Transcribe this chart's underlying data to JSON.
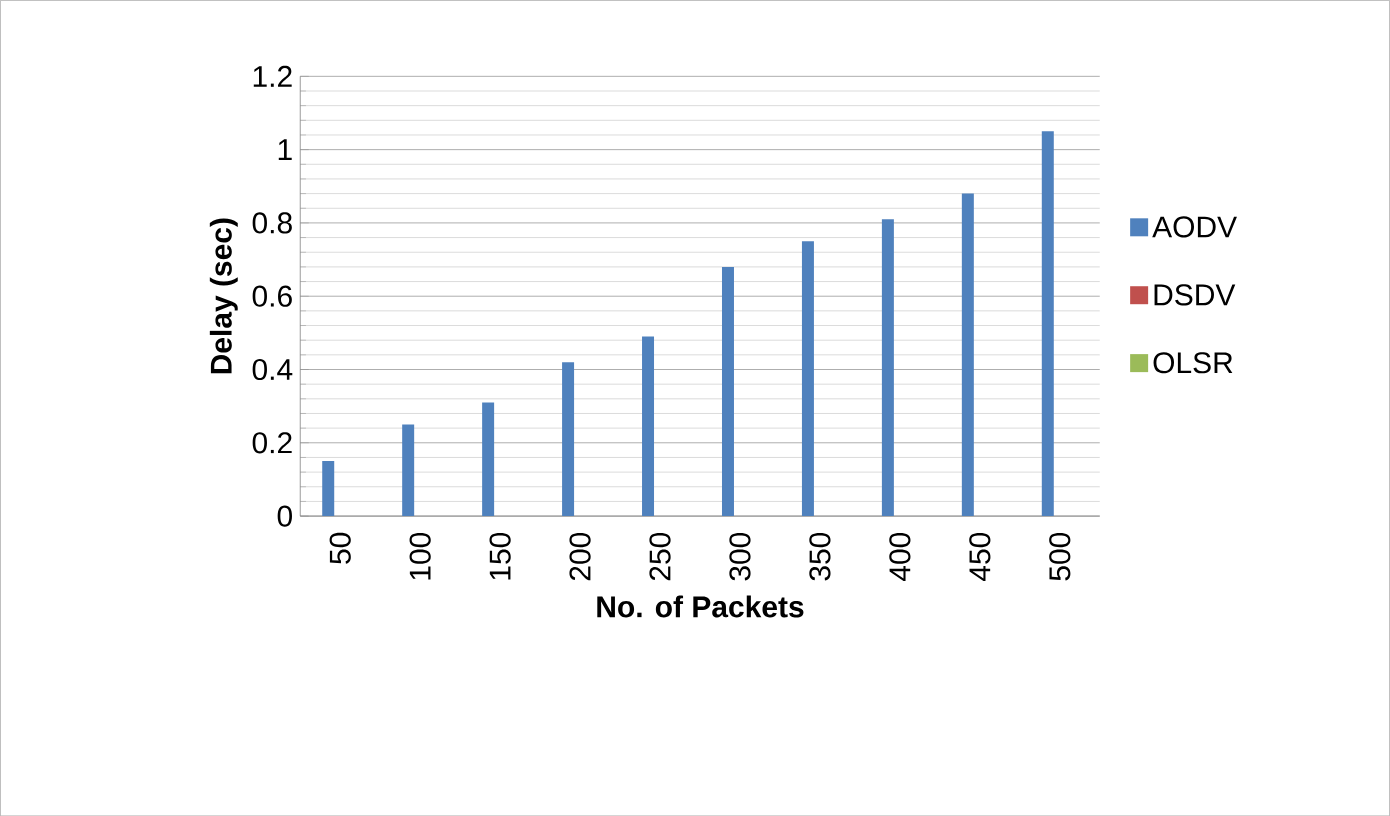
{
  "chart_data": {
    "type": "bar",
    "xlabel": "No. of Packets",
    "ylabel": "Delay (sec)",
    "categories": [
      "50",
      "100",
      "150",
      "200",
      "250",
      "300",
      "350",
      "400",
      "450",
      "500"
    ],
    "series": [
      {
        "name": "AODV",
        "color": "#4f81bd",
        "values": [
          0.15,
          0.25,
          0.31,
          0.42,
          0.49,
          0.68,
          0.75,
          0.81,
          0.88,
          1.05
        ]
      },
      {
        "name": "DSDV",
        "color": "#c0504d",
        "values": [
          0,
          0,
          0,
          0,
          0,
          0,
          0,
          0,
          0,
          0
        ]
      },
      {
        "name": "OLSR",
        "color": "#9bbb59",
        "values": [
          0,
          0,
          0,
          0,
          0,
          0,
          0,
          0,
          0,
          0
        ]
      }
    ],
    "ylim": [
      0,
      1.2
    ],
    "yticks": [
      0,
      0.2,
      0.4,
      0.6,
      0.8,
      1,
      1.2
    ],
    "grid": "y",
    "legend": "right"
  }
}
